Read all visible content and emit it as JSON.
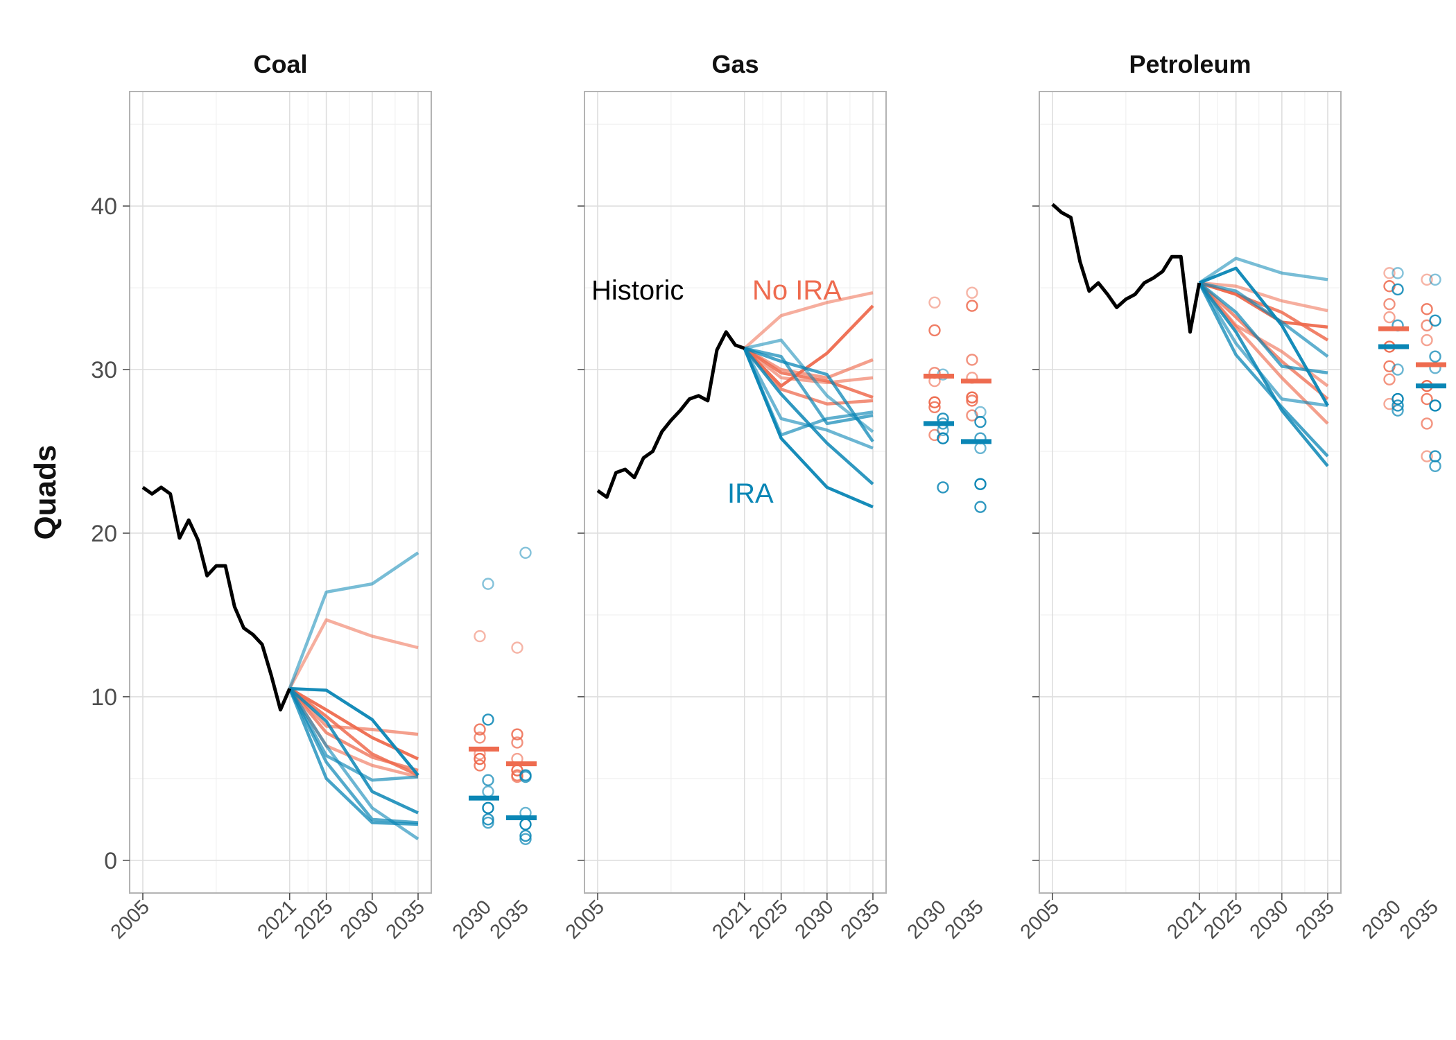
{
  "chart_data": {
    "type": "line",
    "ylabel": "Quads",
    "ylim": [
      -2,
      47
    ],
    "y_ticks": [
      0,
      10,
      20,
      30,
      40
    ],
    "x_ticks": [
      2005,
      2021,
      2025,
      2030,
      2035
    ],
    "dot_labels": [
      "2030",
      "2035"
    ],
    "grid": true,
    "colors": {
      "historic": "#000000",
      "no_ira": "#EE6B4F",
      "ira": "#0A86B5"
    },
    "annotations": {
      "historic": "Historic",
      "no_ira": "No IRA",
      "ira": "IRA"
    },
    "panels": [
      {
        "title": "Coal",
        "historic": {
          "x": [
            2005,
            2006,
            2007,
            2008,
            2009,
            2010,
            2011,
            2012,
            2013,
            2014,
            2015,
            2016,
            2017,
            2018,
            2019,
            2020,
            2021
          ],
          "y": [
            22.8,
            22.4,
            22.8,
            22.4,
            19.7,
            20.8,
            19.6,
            17.4,
            18.0,
            18.0,
            15.5,
            14.2,
            13.8,
            13.2,
            11.3,
            9.2,
            10.5
          ]
        },
        "scenario_x": [
          2021,
          2025,
          2030,
          2035
        ],
        "no_ira": [
          [
            10.5,
            14.7,
            13.7,
            13.0
          ],
          [
            10.5,
            9.2,
            7.5,
            6.2
          ],
          [
            10.5,
            8.2,
            8.0,
            7.7
          ],
          [
            10.5,
            7.8,
            6.3,
            5.5
          ],
          [
            10.5,
            7.0,
            5.8,
            5.1
          ],
          [
            10.5,
            8.8,
            6.5,
            5.2
          ]
        ],
        "ira": [
          [
            10.5,
            16.4,
            16.9,
            18.8
          ],
          [
            10.5,
            10.4,
            8.6,
            5.2
          ],
          [
            10.5,
            6.4,
            4.9,
            5.1
          ],
          [
            10.5,
            5.0,
            2.3,
            2.2
          ],
          [
            10.5,
            7.0,
            3.2,
            1.3
          ],
          [
            10.5,
            8.5,
            4.2,
            2.9
          ],
          [
            10.5,
            6.0,
            2.5,
            2.3
          ]
        ],
        "dots": {
          "no_ira_2030": [
            13.7,
            8.0,
            7.5,
            6.5,
            6.2,
            5.8
          ],
          "ira_2030": [
            16.9,
            8.6,
            4.9,
            4.2,
            3.2,
            2.5,
            2.3
          ],
          "no_ira_2035": [
            13.0,
            7.7,
            7.2,
            6.2,
            5.5,
            5.2,
            5.1
          ],
          "ira_2035": [
            18.8,
            5.2,
            5.1,
            2.9,
            2.2,
            1.5,
            1.3
          ],
          "no_ira_mean": [
            6.8,
            5.9
          ],
          "ira_mean": [
            3.8,
            2.6
          ]
        }
      },
      {
        "title": "Gas",
        "historic": {
          "x": [
            2005,
            2006,
            2007,
            2008,
            2009,
            2010,
            2011,
            2012,
            2013,
            2014,
            2015,
            2016,
            2017,
            2018,
            2019,
            2020,
            2021
          ],
          "y": [
            22.6,
            22.2,
            23.7,
            23.9,
            23.4,
            24.6,
            25.0,
            26.2,
            26.9,
            27.5,
            28.2,
            28.4,
            28.1,
            31.2,
            32.3,
            31.5,
            31.3
          ]
        },
        "scenario_x": [
          2021,
          2025,
          2030,
          2035
        ],
        "no_ira": [
          [
            31.3,
            33.3,
            34.1,
            34.7
          ],
          [
            31.3,
            29.0,
            31.0,
            33.9
          ],
          [
            31.3,
            30.0,
            29.5,
            30.6
          ],
          [
            31.3,
            28.8,
            27.9,
            28.1
          ],
          [
            31.3,
            29.5,
            29.2,
            29.5
          ],
          [
            31.3,
            29.8,
            29.3,
            28.3
          ]
        ],
        "ira": [
          [
            31.3,
            31.8,
            28.4,
            26.2
          ],
          [
            31.3,
            25.8,
            22.8,
            21.6
          ],
          [
            31.3,
            26.0,
            27.0,
            27.4
          ],
          [
            31.3,
            30.5,
            29.7,
            25.6
          ],
          [
            31.3,
            27.0,
            26.3,
            25.2
          ],
          [
            31.3,
            28.5,
            25.5,
            23.0
          ],
          [
            31.3,
            30.8,
            26.7,
            27.2
          ]
        ],
        "dots": {
          "no_ira_2030": [
            34.1,
            32.4,
            29.8,
            29.3,
            28.0,
            27.7,
            26.0
          ],
          "ira_2030": [
            29.7,
            27.0,
            26.7,
            26.3,
            25.8,
            22.8
          ],
          "no_ira_2035": [
            34.7,
            33.9,
            30.6,
            29.5,
            28.3,
            28.1,
            27.2
          ],
          "ira_2035": [
            27.4,
            26.8,
            25.8,
            25.2,
            23.0,
            21.6
          ],
          "no_ira_mean": [
            29.6,
            29.3
          ],
          "ira_mean": [
            26.7,
            25.6
          ]
        }
      },
      {
        "title": "Petroleum",
        "historic": {
          "x": [
            2005,
            2006,
            2007,
            2008,
            2009,
            2010,
            2011,
            2012,
            2013,
            2014,
            2015,
            2016,
            2017,
            2018,
            2019,
            2020,
            2021
          ],
          "y": [
            40.1,
            39.6,
            39.3,
            36.6,
            34.8,
            35.3,
            34.6,
            33.8,
            34.3,
            34.6,
            35.3,
            35.6,
            36.0,
            36.9,
            36.9,
            32.3,
            35.3
          ]
        },
        "scenario_x": [
          2021,
          2025,
          2030,
          2035
        ],
        "no_ira": [
          [
            35.3,
            35.1,
            34.2,
            33.6
          ],
          [
            35.3,
            34.6,
            32.9,
            32.6
          ],
          [
            35.3,
            32.6,
            29.5,
            26.7
          ],
          [
            35.3,
            33.2,
            30.5,
            28.2
          ],
          [
            35.3,
            32.7,
            31.1,
            29.0
          ],
          [
            35.3,
            34.6,
            33.5,
            31.8
          ]
        ],
        "ira": [
          [
            35.3,
            36.8,
            35.9,
            35.5
          ],
          [
            35.3,
            36.2,
            32.7,
            27.8
          ],
          [
            35.3,
            34.8,
            32.9,
            30.8
          ],
          [
            35.3,
            30.9,
            27.7,
            24.7
          ],
          [
            35.3,
            31.6,
            28.2,
            27.8
          ],
          [
            35.3,
            32.3,
            27.5,
            24.1
          ],
          [
            35.3,
            33.5,
            30.2,
            29.8
          ]
        ],
        "dots": {
          "no_ira_2030": [
            35.9,
            35.1,
            34.0,
            33.2,
            31.4,
            30.2,
            29.4,
            27.9
          ],
          "ira_2030": [
            35.9,
            34.9,
            32.7,
            30.0,
            28.2,
            27.8,
            27.5
          ],
          "no_ira_2035": [
            35.5,
            33.7,
            32.7,
            31.8,
            29.0,
            28.2,
            26.7,
            24.7
          ],
          "ira_2035": [
            35.5,
            33.0,
            30.8,
            30.1,
            27.8,
            24.7,
            24.1
          ],
          "no_ira_mean": [
            32.5,
            30.3
          ],
          "ira_mean": [
            31.4,
            29.0
          ]
        }
      }
    ]
  }
}
